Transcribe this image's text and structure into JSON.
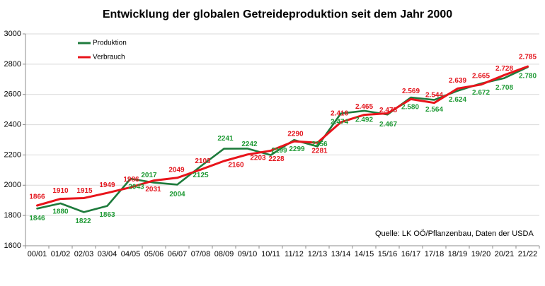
{
  "chart_data": {
    "type": "line",
    "title": "Entwicklung der globalen Getreideproduktion seit dem Jahr 2000",
    "categories": [
      "00/01",
      "01/02",
      "02/03",
      "03/04",
      "04/05",
      "05/06",
      "06/07",
      "07/08",
      "08/09",
      "09/10",
      "10/11",
      "11/12",
      "12/13",
      "13/14",
      "14/15",
      "15/16",
      "16/17",
      "17/18",
      "18/19",
      "19/20",
      "20/21",
      "21/22"
    ],
    "ylim": [
      1600,
      3000
    ],
    "yticks": [
      1600,
      1800,
      2000,
      2200,
      2400,
      2600,
      2800,
      3000
    ],
    "grid": true,
    "legend_position": "top-left",
    "series": [
      {
        "name": "Produktion",
        "color": "#1e7b3c",
        "label_color": "#1f9a35",
        "values": [
          1846,
          1880,
          1822,
          1863,
          2043,
          2017,
          2004,
          2125,
          2241,
          2242,
          2199,
          2299,
          2256,
          2474,
          2492,
          2467,
          2580,
          2564,
          2624,
          2672,
          2708,
          2780
        ],
        "labels": [
          "1846",
          "1880",
          "1822",
          "1863",
          "2043",
          "2017",
          "2004",
          "2125",
          "2241",
          "2242",
          "2199",
          "2299",
          "2256",
          "2.474",
          "2.492",
          "2.467",
          "2.580",
          "2.564",
          "2.624",
          "2.672",
          "2.708",
          "2.780"
        ]
      },
      {
        "name": "Verbrauch",
        "color": "#e8141b",
        "label_color": "#e3141c",
        "values": [
          1866,
          1910,
          1915,
          1949,
          1986,
          2031,
          2049,
          2103,
          2160,
          2203,
          2228,
          2290,
          2281,
          2416,
          2465,
          2475,
          2569,
          2544,
          2639,
          2665,
          2728,
          2785
        ],
        "labels": [
          "1866",
          "1910",
          "1915",
          "1949",
          "1986",
          "2031",
          "2049",
          "2103",
          "2160",
          "2203",
          "2228",
          "2290",
          "2281",
          "2.416",
          "2.465",
          "2.475",
          "2.569",
          "2.544",
          "2.639",
          "2.665",
          "2.728",
          "2.785"
        ]
      }
    ],
    "annotation": "Quelle: LK OÖ/Pflanzenbau, Daten der USDA"
  }
}
